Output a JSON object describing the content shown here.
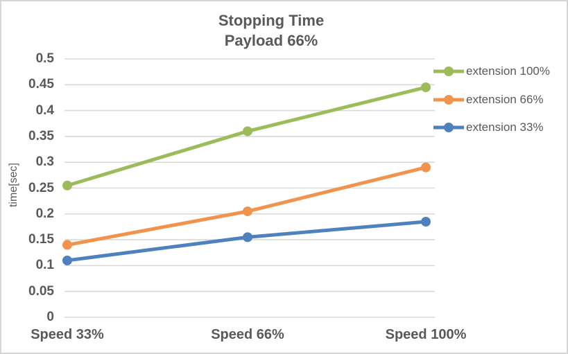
{
  "chart_data": {
    "type": "line",
    "title": "Stopping Time",
    "subtitle": "Payload 66%",
    "title_lines": [
      "Stopping Time",
      "Payload 66%"
    ],
    "ylabel": "time[sec]",
    "xlabel": "",
    "categories": [
      "Speed 33%",
      "Speed 66%",
      "Speed 100%"
    ],
    "series": [
      {
        "name": "extension 100%",
        "color": "#9CBB59",
        "values": [
          0.255,
          0.36,
          0.445
        ]
      },
      {
        "name": "extension 66%",
        "color": "#F2934D",
        "values": [
          0.14,
          0.205,
          0.29
        ]
      },
      {
        "name": "extension 33%",
        "color": "#4E81BD",
        "values": [
          0.11,
          0.155,
          0.185
        ]
      }
    ],
    "ylim": [
      0,
      0.5
    ],
    "ytick_step": 0.05,
    "ytick_labels": [
      "0",
      "0.05",
      "0.1",
      "0.15",
      "0.2",
      "0.25",
      "0.3",
      "0.35",
      "0.4",
      "0.45",
      "0.5"
    ],
    "grid": true,
    "legend_position": "right",
    "marker": "circle"
  },
  "colors": {
    "text": "#595959",
    "grid": "#D9D9D9",
    "border": "#D6D6D6",
    "background": "#FFFFFF"
  }
}
